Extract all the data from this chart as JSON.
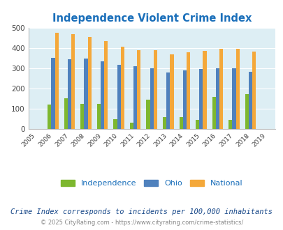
{
  "title": "Independence Violent Crime Index",
  "years": [
    2005,
    2006,
    2007,
    2008,
    2009,
    2010,
    2011,
    2012,
    2013,
    2014,
    2015,
    2016,
    2017,
    2018,
    2019
  ],
  "independence": [
    null,
    120,
    150,
    122,
    122,
    48,
    32,
    145,
    57,
    57,
    45,
    157,
    45,
    170,
    null
  ],
  "ohio": [
    null,
    350,
    345,
    348,
    332,
    315,
    310,
    300,
    278,
    288,
    295,
    300,
    298,
    280,
    null
  ],
  "national": [
    null,
    474,
    466,
    455,
    432,
    405,
    388,
    388,
    368,
    378,
    384,
    397,
    394,
    380,
    null
  ],
  "independence_color": "#7db72f",
  "ohio_color": "#4f81bd",
  "national_color": "#f4a83a",
  "bg_color": "#ddeef4",
  "ylim": [
    0,
    500
  ],
  "yticks": [
    0,
    100,
    200,
    300,
    400,
    500
  ],
  "subtitle": "Crime Index corresponds to incidents per 100,000 inhabitants",
  "footer": "© 2025 CityRating.com - https://www.cityrating.com/crime-statistics/",
  "legend_labels": [
    "Independence",
    "Ohio",
    "National"
  ],
  "title_color": "#1a6fba",
  "subtitle_color": "#1a4a8a",
  "footer_color": "#888888",
  "grid_color": "#ffffff",
  "bar_width": 0.22
}
